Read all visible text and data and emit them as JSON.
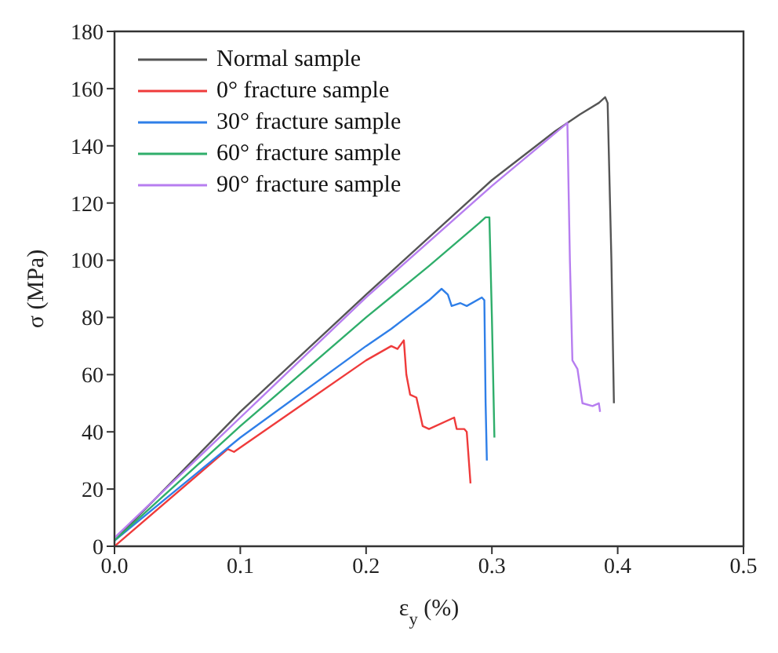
{
  "chart_data": {
    "type": "line",
    "xlabel": "ε$_{y}$ (%)",
    "ylabel": "σ (MPa)",
    "xlim": [
      0,
      0.5
    ],
    "xticks": [
      {
        "value": 0,
        "label": "0.0"
      },
      0.1,
      0.2,
      0.3,
      0.4,
      0.5
    ],
    "ylim": [
      0,
      180
    ],
    "yticks": [
      0,
      20,
      40,
      60,
      80,
      100,
      120,
      140,
      160,
      180
    ],
    "grid": false,
    "legend": "top left",
    "marker": "none",
    "line_style": "solid",
    "series": [
      {
        "name": "Normal sample",
        "color": "#555555",
        "x": [
          0,
          0.1,
          0.2,
          0.3,
          0.35,
          0.37,
          0.385,
          0.39,
          0.392,
          0.395,
          0.397
        ],
        "values": [
          2,
          47,
          88,
          128,
          145,
          151,
          155,
          157,
          155,
          100,
          50
        ]
      },
      {
        "name": "0° fracture sample",
        "color": "#ef3b3b",
        "x": [
          0,
          0.09,
          0.095,
          0.2,
          0.22,
          0.225,
          0.23,
          0.232,
          0.235,
          0.24,
          0.245,
          0.25,
          0.27,
          0.272,
          0.278,
          0.28,
          0.283
        ],
        "values": [
          0,
          34,
          33,
          65,
          70,
          69,
          72,
          60,
          53,
          52,
          42,
          41,
          45,
          41,
          41,
          40,
          22
        ]
      },
      {
        "name": "30° fracture sample",
        "color": "#2f7fe8",
        "x": [
          0,
          0.1,
          0.2,
          0.22,
          0.25,
          0.26,
          0.265,
          0.268,
          0.275,
          0.28,
          0.292,
          0.294,
          0.295,
          0.296
        ],
        "values": [
          2,
          38,
          70,
          76,
          86,
          90,
          88,
          84,
          85,
          84,
          87,
          86,
          50,
          30
        ]
      },
      {
        "name": "60° fracture sample",
        "color": "#2fae6b",
        "x": [
          0,
          0.1,
          0.2,
          0.25,
          0.29,
          0.295,
          0.298,
          0.3,
          0.302
        ],
        "values": [
          2,
          42,
          80,
          98,
          113,
          115,
          115,
          80,
          38
        ]
      },
      {
        "name": "90° fracture sample",
        "color": "#b77ef0",
        "x": [
          0,
          0.1,
          0.2,
          0.3,
          0.36,
          0.362,
          0.364,
          0.368,
          0.372,
          0.38,
          0.385,
          0.386
        ],
        "values": [
          3,
          45,
          87,
          126,
          148,
          100,
          65,
          62,
          50,
          49,
          50,
          47
        ]
      }
    ]
  }
}
